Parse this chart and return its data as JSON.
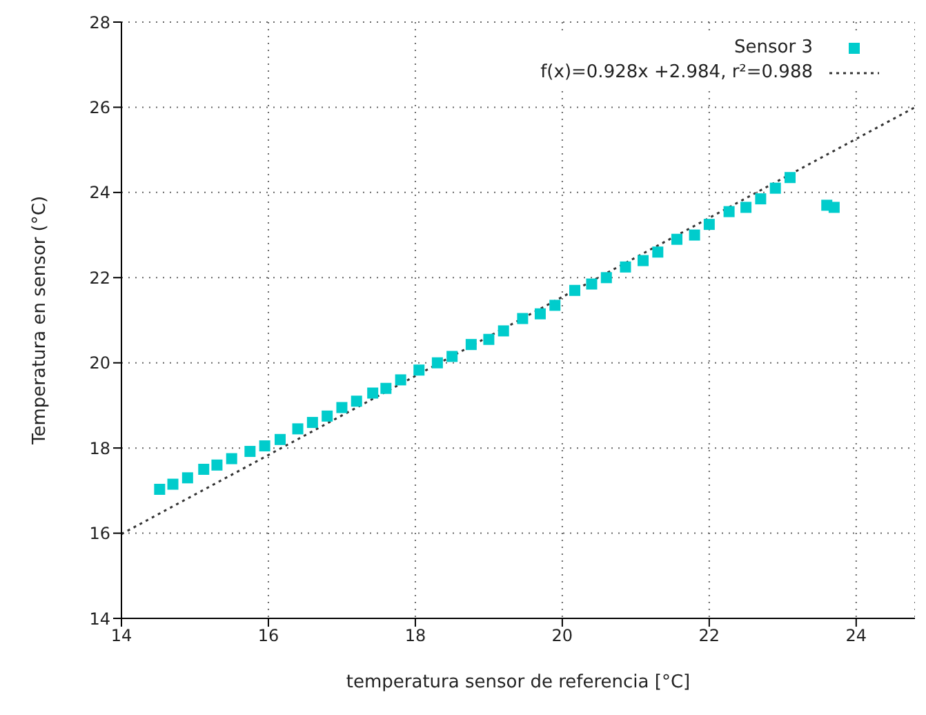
{
  "chart_data": {
    "type": "scatter",
    "xlabel": "temperatura sensor de referencia [°C]",
    "ylabel": "Temperatura en sensor (°C)",
    "xlim": [
      14,
      24.8
    ],
    "ylim": [
      14,
      28
    ],
    "xticks": [
      14,
      16,
      18,
      20,
      22,
      24
    ],
    "yticks": [
      14,
      16,
      18,
      20,
      22,
      24,
      26,
      28
    ],
    "grid": true,
    "legend": "top right",
    "marker": "square",
    "series": [
      {
        "name": "Sensor 3",
        "color": "#00cccc",
        "x": [
          14.52,
          14.7,
          14.9,
          15.12,
          15.3,
          15.5,
          15.75,
          15.95,
          16.16,
          16.4,
          16.6,
          16.8,
          17.0,
          17.2,
          17.42,
          17.6,
          17.8,
          18.05,
          18.3,
          18.5,
          18.76,
          19.0,
          19.2,
          19.46,
          19.7,
          19.9,
          20.17,
          20.4,
          20.6,
          20.86,
          21.1,
          21.3,
          21.56,
          21.8,
          22.0,
          22.27,
          22.5,
          22.7,
          22.9,
          23.1,
          23.6,
          23.7
        ],
        "values": [
          17.03,
          17.15,
          17.3,
          17.5,
          17.6,
          17.75,
          17.92,
          18.05,
          18.2,
          18.45,
          18.6,
          18.75,
          18.95,
          19.1,
          19.29,
          19.4,
          19.6,
          19.83,
          20.0,
          20.15,
          20.43,
          20.55,
          20.75,
          21.04,
          21.15,
          21.35,
          21.7,
          21.85,
          22.0,
          22.25,
          22.4,
          22.6,
          22.9,
          23.0,
          23.25,
          23.55,
          23.65,
          23.85,
          24.1,
          24.35,
          23.7,
          23.65
        ]
      },
      {
        "name": "f(x)=0.928x +2.984, r²=0.988",
        "type": "line",
        "color": "#333333",
        "line_style": "dotted",
        "marker": "none",
        "x": [
          14,
          24.8
        ],
        "values": [
          15.98,
          26.0
        ]
      }
    ]
  }
}
